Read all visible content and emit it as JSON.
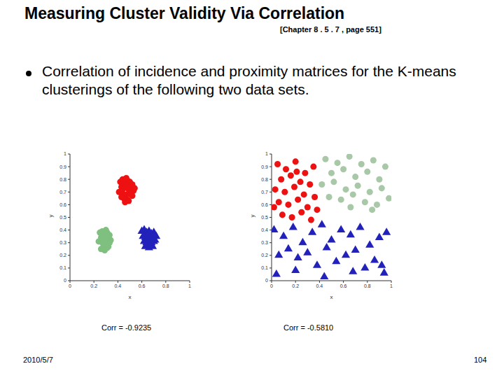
{
  "slide": {
    "title": "Measuring Cluster Validity Via Correlation",
    "reference": "[Chapter 8 . 5 . 7 , page 551]",
    "bullet": "Correlation of incidence and proximity matrices for the K-means clusterings of the following two data sets.",
    "date": "2010/5/7",
    "page": 104
  },
  "chart_data": [
    {
      "type": "scatter",
      "x_label": "x",
      "y_label": "y",
      "annotations": [
        "Corr = -0.9235"
      ],
      "xlim": [
        0,
        1
      ],
      "ylim": [
        0,
        1
      ],
      "xticks": [
        0,
        0.2,
        0.4,
        0.6,
        0.8,
        1
      ],
      "yticks": [
        0,
        0.1,
        0.2,
        0.3,
        0.4,
        0.5,
        0.6,
        0.7,
        0.8,
        0.9,
        1
      ],
      "series": [
        {
          "color": "#ee1111",
          "marker": "circle",
          "x": [
            0.42,
            0.44,
            0.46,
            0.48,
            0.5,
            0.52,
            0.43,
            0.45,
            0.47,
            0.49,
            0.51,
            0.53,
            0.41,
            0.44,
            0.47,
            0.5,
            0.52,
            0.45,
            0.48,
            0.43,
            0.46,
            0.49,
            0.51,
            0.47,
            0.54
          ],
          "y": [
            0.78,
            0.8,
            0.77,
            0.79,
            0.78,
            0.76,
            0.74,
            0.73,
            0.75,
            0.72,
            0.74,
            0.71,
            0.7,
            0.69,
            0.68,
            0.7,
            0.67,
            0.65,
            0.64,
            0.66,
            0.62,
            0.63,
            0.68,
            0.81,
            0.73
          ]
        },
        {
          "color": "#7fbf7f",
          "marker": "circle",
          "x": [
            0.25,
            0.27,
            0.29,
            0.31,
            0.33,
            0.26,
            0.28,
            0.3,
            0.32,
            0.34,
            0.24,
            0.27,
            0.3,
            0.33,
            0.28,
            0.31,
            0.26,
            0.29,
            0.32,
            0.3
          ],
          "y": [
            0.38,
            0.39,
            0.37,
            0.38,
            0.36,
            0.34,
            0.35,
            0.33,
            0.34,
            0.32,
            0.31,
            0.3,
            0.29,
            0.3,
            0.27,
            0.26,
            0.25,
            0.24,
            0.27,
            0.4
          ]
        },
        {
          "color": "#2222bb",
          "marker": "triangle",
          "x": [
            0.6,
            0.62,
            0.64,
            0.66,
            0.68,
            0.7,
            0.61,
            0.63,
            0.65,
            0.67,
            0.69,
            0.71,
            0.62,
            0.64,
            0.66,
            0.68,
            0.7,
            0.63,
            0.66,
            0.69,
            0.65,
            0.72
          ],
          "y": [
            0.39,
            0.4,
            0.38,
            0.39,
            0.37,
            0.38,
            0.35,
            0.34,
            0.35,
            0.33,
            0.34,
            0.32,
            0.31,
            0.3,
            0.29,
            0.3,
            0.31,
            0.27,
            0.26,
            0.27,
            0.36,
            0.35
          ]
        }
      ]
    },
    {
      "type": "scatter",
      "x_label": "x",
      "y_label": "y",
      "annotations": [
        "Corr = -0.5810"
      ],
      "xlim": [
        0,
        1
      ],
      "ylim": [
        0,
        1
      ],
      "xticks": [
        0,
        0.2,
        0.4,
        0.6,
        0.8,
        1
      ],
      "yticks": [
        0,
        0.1,
        0.2,
        0.3,
        0.4,
        0.5,
        0.6,
        0.7,
        0.8,
        0.9,
        1
      ],
      "series": [
        {
          "color": "#ee1111",
          "marker": "circle",
          "x": [
            0.05,
            0.12,
            0.2,
            0.28,
            0.35,
            0.08,
            0.16,
            0.24,
            0.32,
            0.03,
            0.11,
            0.19,
            0.27,
            0.36,
            0.06,
            0.14,
            0.22,
            0.3,
            0.38,
            0.09,
            0.17,
            0.25,
            0.33,
            0.02,
            0.21
          ],
          "y": [
            0.92,
            0.88,
            0.94,
            0.85,
            0.9,
            0.8,
            0.83,
            0.78,
            0.76,
            0.72,
            0.7,
            0.74,
            0.68,
            0.66,
            0.62,
            0.6,
            0.64,
            0.58,
            0.56,
            0.52,
            0.5,
            0.54,
            0.48,
            0.58,
            0.86
          ]
        },
        {
          "color": "#a8c8a8",
          "marker": "circle",
          "x": [
            0.45,
            0.55,
            0.65,
            0.75,
            0.85,
            0.95,
            0.5,
            0.6,
            0.7,
            0.8,
            0.9,
            0.42,
            0.52,
            0.62,
            0.72,
            0.82,
            0.92,
            0.48,
            0.58,
            0.68,
            0.78,
            0.88,
            0.98,
            0.66,
            0.84
          ],
          "y": [
            0.96,
            0.93,
            0.98,
            0.92,
            0.95,
            0.9,
            0.85,
            0.88,
            0.82,
            0.86,
            0.8,
            0.76,
            0.78,
            0.72,
            0.75,
            0.7,
            0.73,
            0.66,
            0.64,
            0.68,
            0.62,
            0.6,
            0.65,
            0.58,
            0.56
          ]
        },
        {
          "color": "#2222bb",
          "marker": "triangle",
          "x": [
            0.02,
            0.1,
            0.18,
            0.26,
            0.34,
            0.42,
            0.5,
            0.58,
            0.66,
            0.74,
            0.82,
            0.9,
            0.96,
            0.06,
            0.14,
            0.22,
            0.3,
            0.38,
            0.46,
            0.54,
            0.62,
            0.7,
            0.78,
            0.86,
            0.94,
            0.04,
            0.2,
            0.44,
            0.68,
            0.92
          ],
          "y": [
            0.4,
            0.35,
            0.42,
            0.3,
            0.38,
            0.44,
            0.32,
            0.4,
            0.36,
            0.42,
            0.28,
            0.34,
            0.38,
            0.2,
            0.25,
            0.18,
            0.22,
            0.12,
            0.26,
            0.15,
            0.2,
            0.24,
            0.1,
            0.16,
            0.06,
            0.05,
            0.08,
            0.03,
            0.07,
            0.12
          ]
        }
      ]
    }
  ]
}
